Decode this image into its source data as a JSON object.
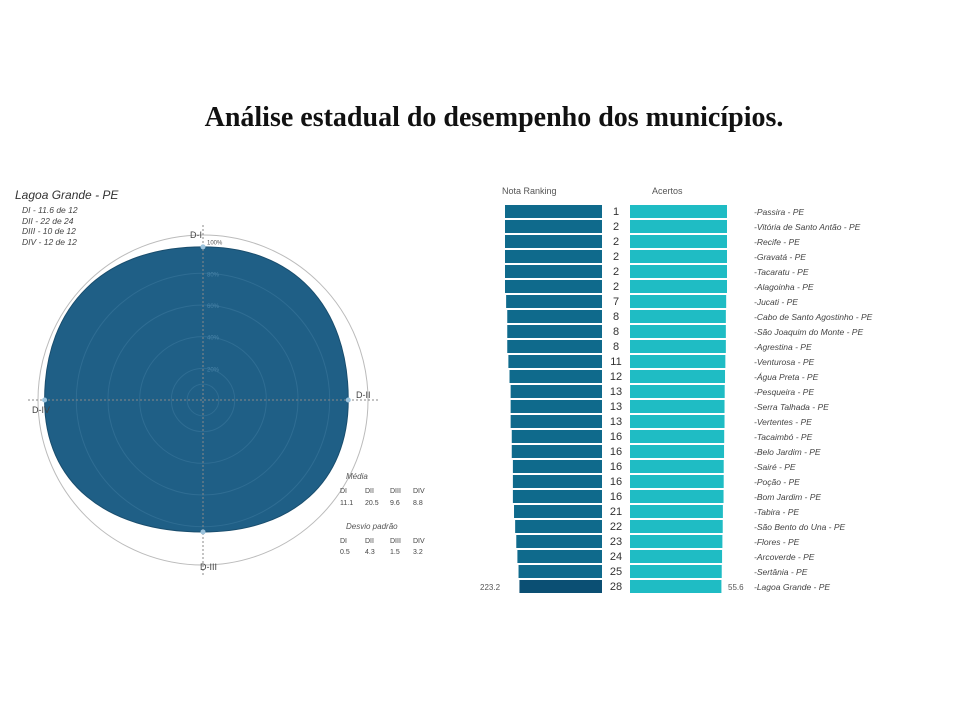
{
  "title": "Análise estadual do desempenho dos municípios.",
  "radar": {
    "municipality": "Lagoa Grande - PE",
    "dims": [
      "DI - 11.6 de 12",
      "DII - 22 de 24",
      "DIII - 10 de 12",
      "DIV - 12 de 12"
    ],
    "axes": [
      "D-I",
      "D-II",
      "D-III",
      "D-IV"
    ],
    "ring_labels": [
      "100%",
      "80%",
      "60%",
      "40%",
      "20%"
    ],
    "values_pct": [
      96.7,
      91.7,
      83.3,
      100
    ]
  },
  "stats": {
    "media_title": "Média",
    "desvio_title": "Desvio padrão",
    "cols": [
      "DI",
      "DII",
      "DIII",
      "DIV"
    ],
    "media": [
      "11.1",
      "20.5",
      "9.6",
      "8.8"
    ],
    "desvio": [
      "0.5",
      "4.3",
      "1.5",
      "3.2"
    ]
  },
  "colors": {
    "radar_fill": "#1f5f86",
    "bar_left": "#0f6a8c",
    "bar_right": "#1fbcc4",
    "bar_left_last": "#0b4f73"
  },
  "chart_data": {
    "type": "bar",
    "left_header": "Nota Ranking",
    "right_header": "Acertos",
    "left_last_value": "223.2",
    "right_last_value": "55.6",
    "categories": [
      "Passira - PE",
      "Vitória de Santo Antão - PE",
      "Recife - PE",
      "Gravatá - PE",
      "Tacaratu - PE",
      "Alagoinha - PE",
      "Jucati - PE",
      "Cabo de Santo Agostinho - PE",
      "São Joaquim do Monte - PE",
      "Agrestina - PE",
      "Venturosa - PE",
      "Água Preta - PE",
      "Pesqueira - PE",
      "Serra Talhada - PE",
      "Vertentes - PE",
      "Tacaimbó - PE",
      "Belo Jardim - PE",
      "Sairé - PE",
      "Poção - PE",
      "Bom Jardim - PE",
      "Tabira - PE",
      "São Bento do Una - PE",
      "Flores - PE",
      "Arcoverde - PE",
      "Sertânia - PE",
      "Lagoa Grande - PE"
    ],
    "ranks": [
      "1",
      "2",
      "2",
      "2",
      "2",
      "2",
      "7",
      "8",
      "8",
      "8",
      "11",
      "12",
      "13",
      "13",
      "13",
      "16",
      "16",
      "16",
      "16",
      "16",
      "21",
      "22",
      "23",
      "24",
      "25",
      "28"
    ],
    "series": [
      {
        "values": [
          236,
          236,
          236,
          236,
          236,
          236,
          235,
          234,
          234,
          234,
          233,
          232,
          231,
          231,
          231,
          230,
          230,
          229,
          229,
          229,
          228,
          227,
          226,
          225,
          224,
          223.2
        ]
      },
      {
        "values": [
          59,
          59,
          59,
          59,
          59,
          59,
          58.5,
          58.3,
          58.3,
          58.3,
          58,
          57.8,
          57.6,
          57.5,
          57.5,
          57.3,
          57.2,
          57,
          57,
          56.9,
          56.5,
          56.4,
          56.2,
          56,
          55.8,
          55.6
        ]
      }
    ]
  }
}
